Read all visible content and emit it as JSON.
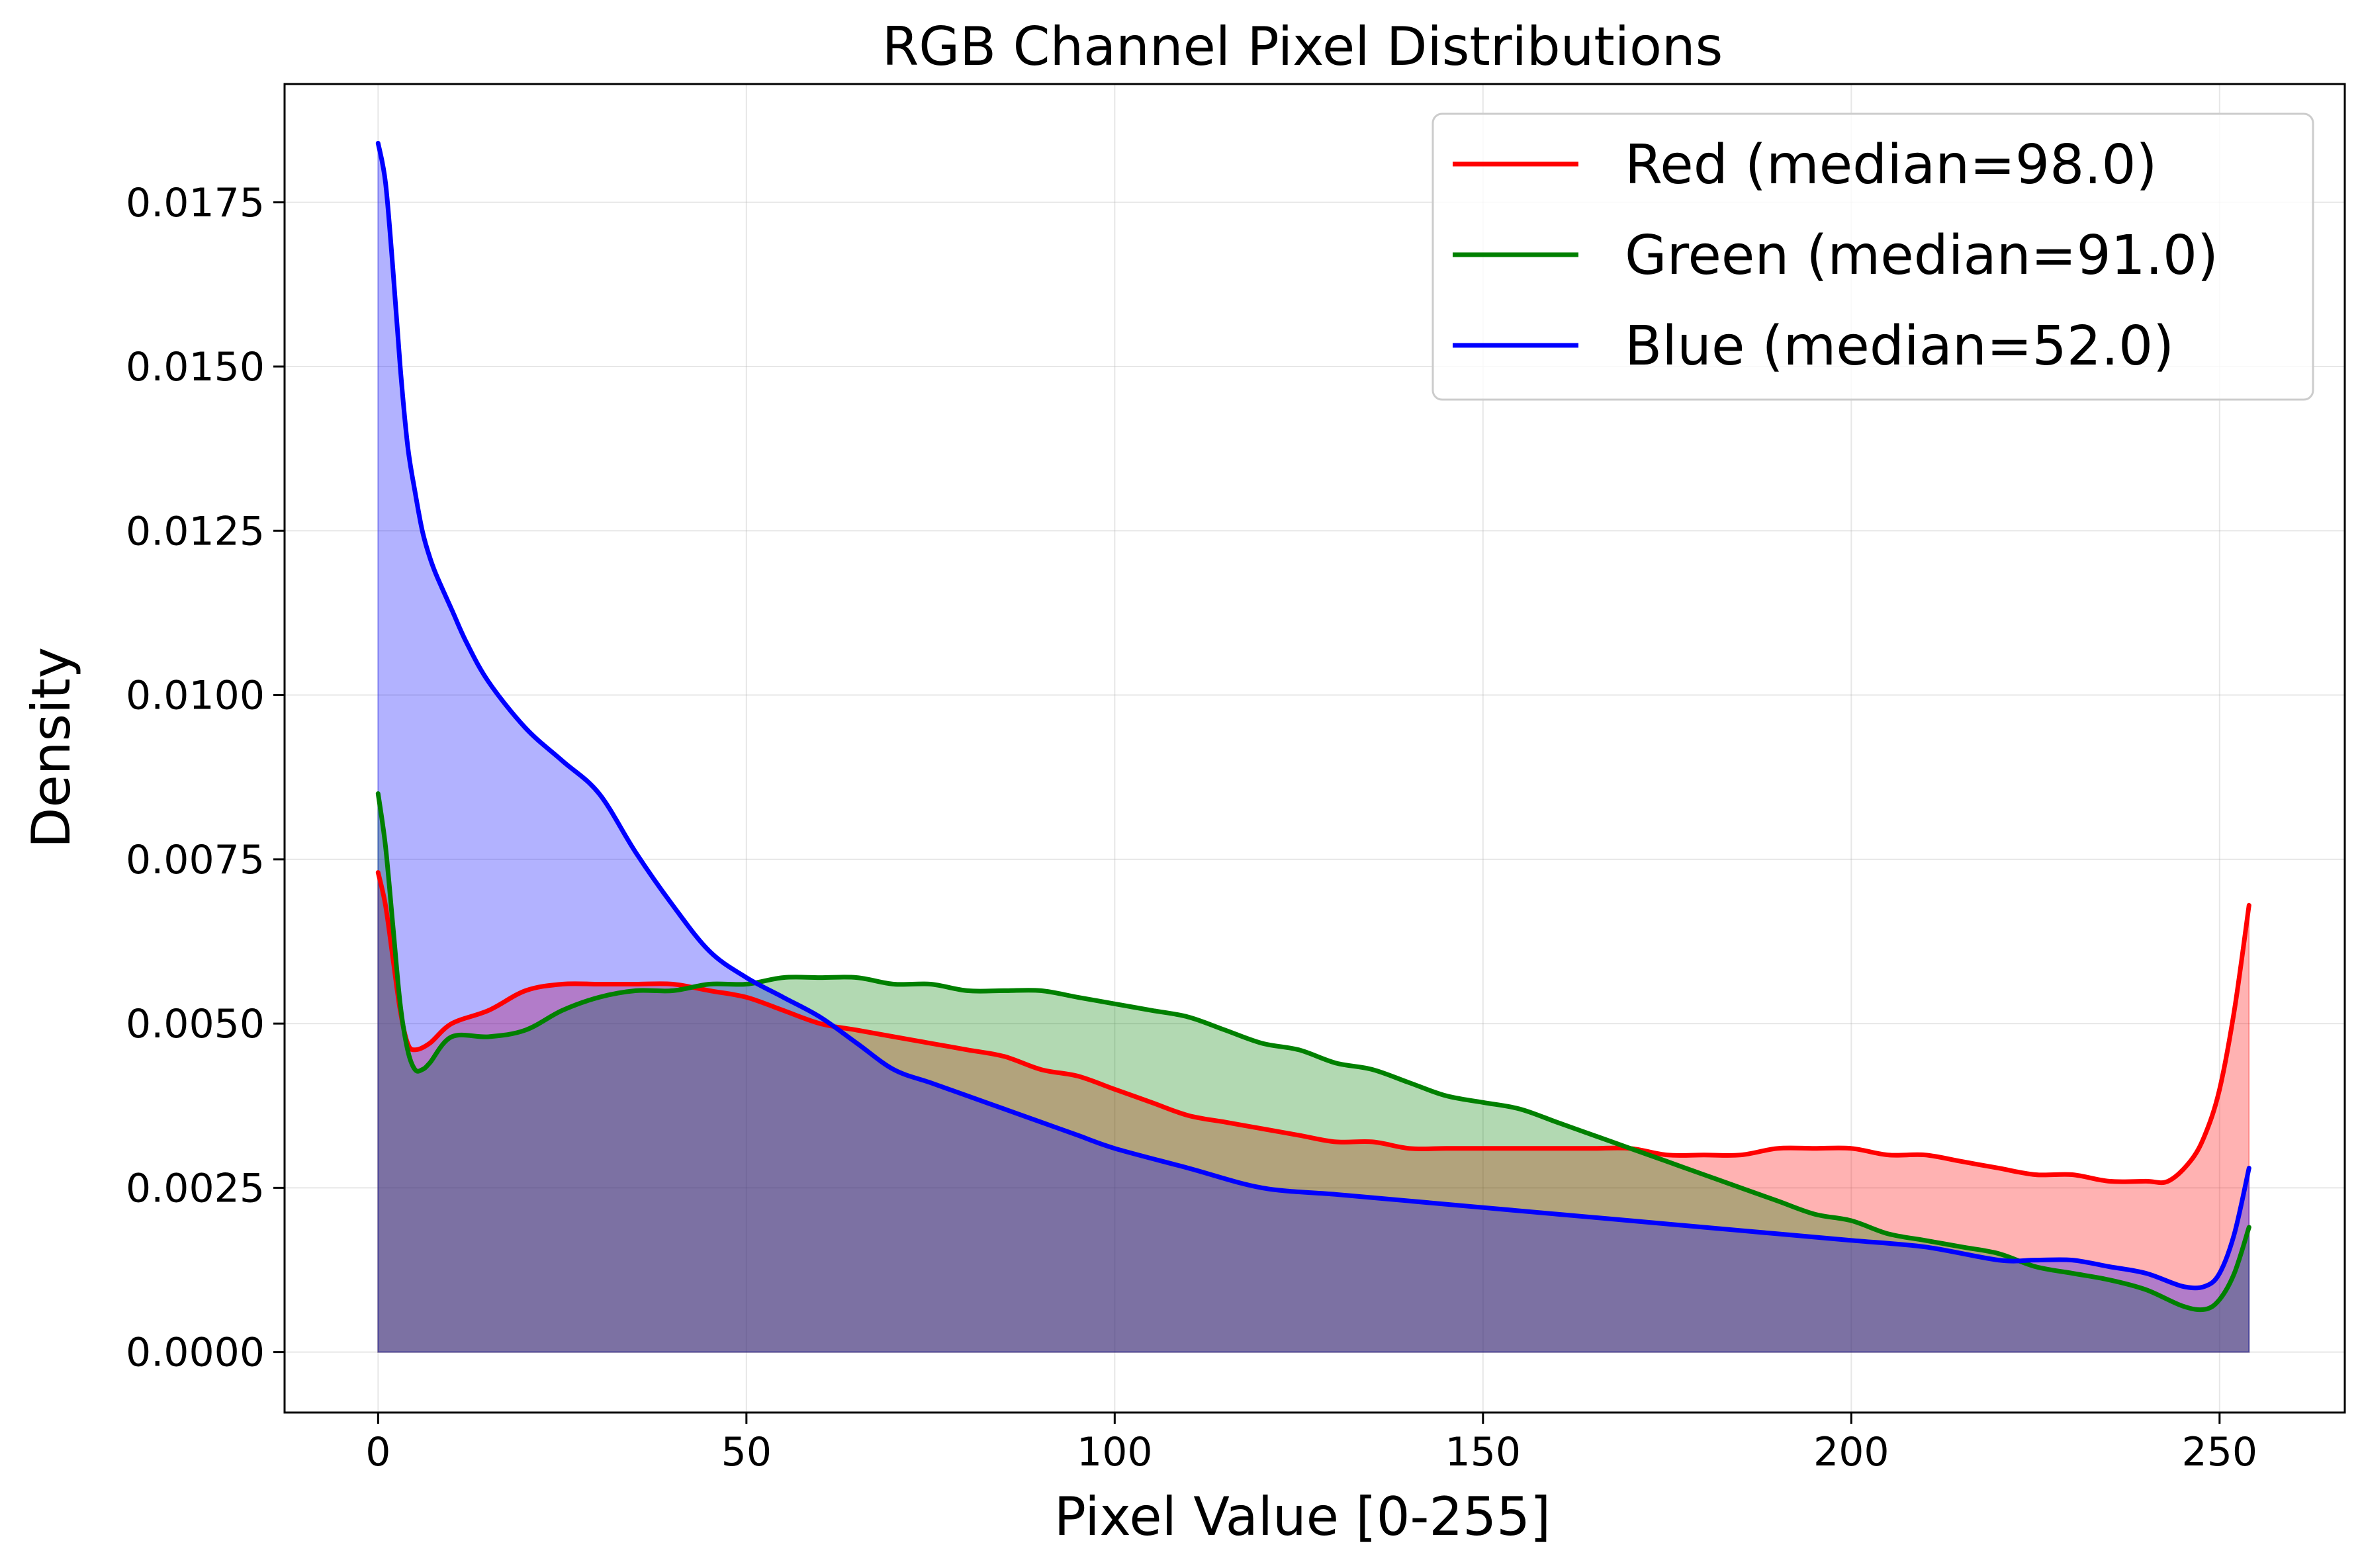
{
  "chart_data": {
    "type": "area",
    "title": "RGB Channel Pixel Distributions",
    "xlabel": "Pixel Value [0-255]",
    "ylabel": "Density",
    "xlim": [
      -12.7,
      267
    ],
    "ylim": [
      -0.00092,
      0.0193
    ],
    "xticks": [
      0,
      50,
      100,
      150,
      200,
      250
    ],
    "yticks": [
      0.0,
      0.0025,
      0.005,
      0.0075,
      0.01,
      0.0125,
      0.015,
      0.0175
    ],
    "xtick_labels": [
      "0",
      "50",
      "100",
      "150",
      "200",
      "250"
    ],
    "ytick_labels": [
      "0.0000",
      "0.0025",
      "0.0050",
      "0.0075",
      "0.0100",
      "0.0125",
      "0.0150",
      "0.0175"
    ],
    "grid": true,
    "legend_position": "upper-right",
    "series": [
      {
        "name": "Red (median=98.0)",
        "color": "#ff0000",
        "fill": "#ff0000",
        "x": [
          0,
          1,
          2,
          3,
          4,
          5,
          7,
          10,
          15,
          20,
          25,
          30,
          35,
          40,
          45,
          50,
          55,
          60,
          65,
          70,
          75,
          80,
          85,
          90,
          95,
          100,
          105,
          110,
          115,
          120,
          125,
          130,
          135,
          140,
          145,
          150,
          155,
          160,
          165,
          170,
          175,
          180,
          185,
          190,
          195,
          200,
          205,
          210,
          215,
          220,
          225,
          230,
          235,
          240,
          243,
          246,
          248,
          250,
          252,
          254
        ],
        "values": [
          0.0073,
          0.0068,
          0.006,
          0.0052,
          0.0047,
          0.0046,
          0.0047,
          0.005,
          0.0052,
          0.0055,
          0.0056,
          0.0056,
          0.0056,
          0.0056,
          0.0055,
          0.0054,
          0.0052,
          0.005,
          0.0049,
          0.0048,
          0.0047,
          0.0046,
          0.0045,
          0.0043,
          0.0042,
          0.004,
          0.0038,
          0.0036,
          0.0035,
          0.0034,
          0.0033,
          0.0032,
          0.0032,
          0.0031,
          0.0031,
          0.0031,
          0.0031,
          0.0031,
          0.0031,
          0.0031,
          0.003,
          0.003,
          0.003,
          0.0031,
          0.0031,
          0.0031,
          0.003,
          0.003,
          0.0029,
          0.0028,
          0.0027,
          0.0027,
          0.0026,
          0.0026,
          0.0026,
          0.0029,
          0.0033,
          0.004,
          0.0052,
          0.0068
        ]
      },
      {
        "name": "Green (median=91.0)",
        "color": "#008000",
        "fill": "#008000",
        "x": [
          0,
          1,
          2,
          3,
          4,
          5,
          6,
          7,
          10,
          15,
          20,
          25,
          30,
          35,
          40,
          45,
          50,
          55,
          60,
          65,
          70,
          75,
          80,
          85,
          90,
          95,
          100,
          105,
          110,
          115,
          120,
          125,
          130,
          135,
          140,
          145,
          150,
          155,
          160,
          165,
          170,
          175,
          180,
          185,
          190,
          195,
          200,
          205,
          210,
          215,
          220,
          225,
          230,
          235,
          240,
          245,
          248,
          250,
          252,
          254
        ],
        "values": [
          0.0085,
          0.0077,
          0.0065,
          0.0053,
          0.0046,
          0.0043,
          0.0043,
          0.0044,
          0.0048,
          0.0048,
          0.0049,
          0.0052,
          0.0054,
          0.0055,
          0.0055,
          0.0056,
          0.0056,
          0.0057,
          0.0057,
          0.0057,
          0.0056,
          0.0056,
          0.0055,
          0.0055,
          0.0055,
          0.0054,
          0.0053,
          0.0052,
          0.0051,
          0.0049,
          0.0047,
          0.0046,
          0.0044,
          0.0043,
          0.0041,
          0.0039,
          0.0038,
          0.0037,
          0.0035,
          0.0033,
          0.0031,
          0.0029,
          0.0027,
          0.0025,
          0.0023,
          0.0021,
          0.002,
          0.0018,
          0.0017,
          0.0016,
          0.0015,
          0.0013,
          0.0012,
          0.0011,
          0.00095,
          0.0007,
          0.00065,
          0.0008,
          0.0012,
          0.0019
        ]
      },
      {
        "name": "Blue (median=52.0)",
        "color": "#0000ff",
        "fill": "#0000ff",
        "x": [
          0,
          1,
          2,
          3,
          4,
          5,
          6,
          7,
          8,
          10,
          12,
          15,
          20,
          25,
          30,
          35,
          40,
          45,
          50,
          55,
          60,
          65,
          70,
          75,
          80,
          85,
          90,
          95,
          100,
          110,
          120,
          130,
          140,
          150,
          160,
          170,
          180,
          190,
          200,
          210,
          220,
          225,
          230,
          235,
          240,
          245,
          248,
          250,
          252,
          254
        ],
        "values": [
          0.0184,
          0.0178,
          0.0165,
          0.015,
          0.0138,
          0.0131,
          0.0125,
          0.0121,
          0.0118,
          0.0113,
          0.0108,
          0.0102,
          0.0095,
          0.009,
          0.0085,
          0.0076,
          0.0068,
          0.0061,
          0.0057,
          0.0054,
          0.0051,
          0.0047,
          0.0043,
          0.0041,
          0.0039,
          0.0037,
          0.0035,
          0.0033,
          0.0031,
          0.0028,
          0.0025,
          0.0024,
          0.0023,
          0.0022,
          0.0021,
          0.002,
          0.0019,
          0.0018,
          0.0017,
          0.0016,
          0.0014,
          0.0014,
          0.0014,
          0.0013,
          0.0012,
          0.001,
          0.001,
          0.0012,
          0.0018,
          0.0028
        ]
      }
    ]
  }
}
